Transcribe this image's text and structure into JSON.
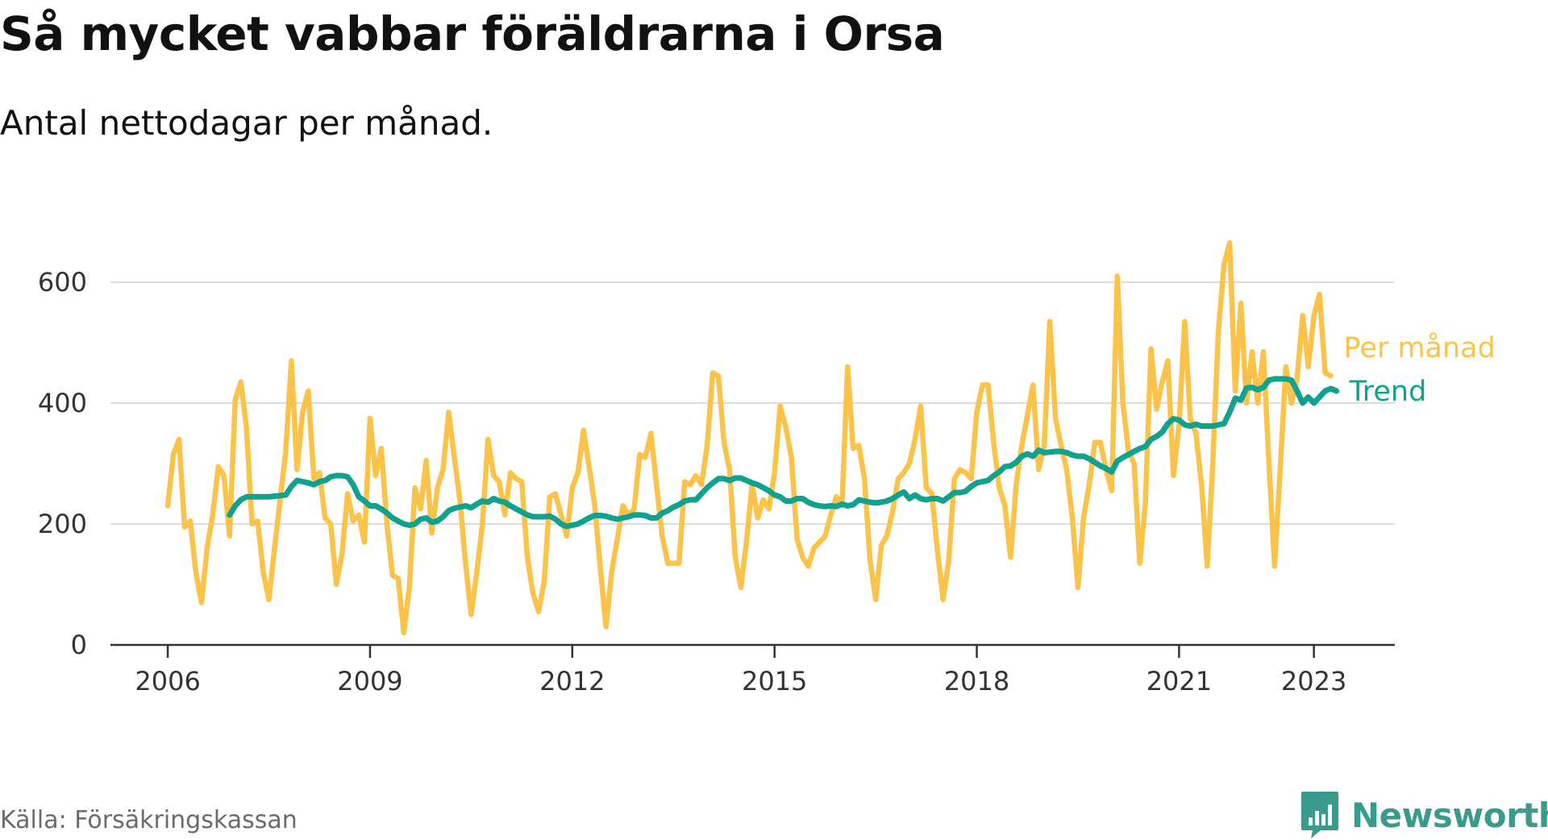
{
  "title": "Så mycket vabbar föräldrarna i Orsa",
  "subtitle": "Antal nettodagar per månad.",
  "source": "Källa: Försäkringskassan",
  "brand": {
    "name": "Newsworthy",
    "icon": "bar-chart-logo-icon",
    "color": "#3a9a8c"
  },
  "colors": {
    "monthly": "#fbc34a",
    "trend": "#12a08f",
    "grid": "#dcdcdc",
    "axis": "#333333"
  },
  "chart_data": {
    "type": "line",
    "title": "Så mycket vabbar föräldrarna i Orsa",
    "subtitle": "Antal nettodagar per månad.",
    "x_tick_labels": [
      "2006",
      "2009",
      "2012",
      "2015",
      "2018",
      "2021",
      "2023"
    ],
    "x_tick_positions": [
      2006,
      2009,
      2012,
      2015,
      2018,
      2021,
      2023
    ],
    "y_ticks": [
      0,
      200,
      400,
      600
    ],
    "xlim": [
      2005.15,
      2024.2
    ],
    "ylim": [
      0,
      680
    ],
    "grid": true,
    "series": [
      {
        "name": "Per månad",
        "color": "#fbc34a",
        "start": 2006.0,
        "step_months": 1,
        "values": [
          230,
          315,
          340,
          195,
          205,
          120,
          70,
          160,
          215,
          295,
          280,
          180,
          405,
          435,
          360,
          200,
          205,
          120,
          75,
          160,
          240,
          320,
          470,
          290,
          385,
          420,
          275,
          285,
          210,
          200,
          100,
          150,
          250,
          205,
          215,
          170,
          375,
          280,
          325,
          200,
          115,
          110,
          20,
          95,
          260,
          225,
          305,
          185,
          260,
          290,
          385,
          310,
          240,
          135,
          50,
          120,
          200,
          340,
          280,
          270,
          215,
          285,
          275,
          270,
          145,
          85,
          55,
          105,
          245,
          250,
          215,
          180,
          260,
          285,
          355,
          295,
          230,
          125,
          30,
          120,
          175,
          230,
          215,
          225,
          315,
          310,
          350,
          265,
          180,
          135,
          135,
          135,
          270,
          265,
          280,
          265,
          330,
          450,
          445,
          335,
          290,
          145,
          95,
          170,
          265,
          210,
          240,
          225,
          285,
          395,
          360,
          310,
          175,
          145,
          130,
          160,
          170,
          180,
          215,
          245,
          230,
          460,
          325,
          330,
          275,
          140,
          75,
          165,
          180,
          220,
          275,
          285,
          300,
          340,
          395,
          260,
          250,
          155,
          75,
          140,
          275,
          290,
          285,
          275,
          385,
          430,
          430,
          335,
          260,
          230,
          145,
          265,
          330,
          380,
          430,
          290,
          330,
          535,
          375,
          330,
          290,
          210,
          95,
          210,
          265,
          335,
          335,
          290,
          255,
          610,
          400,
          320,
          300,
          135,
          235,
          490,
          390,
          435,
          470,
          280,
          365,
          535,
          375,
          350,
          265,
          130,
          300,
          520,
          630,
          665,
          420,
          565,
          400,
          485,
          400,
          485,
          300,
          130,
          290,
          460,
          400,
          440,
          545,
          460,
          545,
          580,
          450,
          445
        ]
      },
      {
        "name": "Trend",
        "color": "#12a08f",
        "start": 2006.917,
        "step_months": 1,
        "values": [
          215,
          230,
          240,
          245,
          245,
          245,
          245,
          245,
          246,
          247,
          248,
          262,
          272,
          270,
          268,
          265,
          270,
          272,
          278,
          280,
          280,
          278,
          265,
          245,
          238,
          230,
          230,
          225,
          218,
          210,
          205,
          200,
          198,
          200,
          208,
          210,
          203,
          205,
          212,
          222,
          226,
          228,
          230,
          227,
          233,
          238,
          236,
          242,
          238,
          236,
          230,
          225,
          220,
          215,
          212,
          212,
          212,
          213,
          208,
          200,
          196,
          198,
          200,
          205,
          210,
          214,
          214,
          213,
          210,
          208,
          210,
          212,
          215,
          215,
          214,
          210,
          210,
          218,
          222,
          228,
          232,
          238,
          240,
          240,
          250,
          260,
          268,
          275,
          275,
          272,
          276,
          276,
          272,
          268,
          265,
          260,
          255,
          248,
          245,
          238,
          238,
          242,
          242,
          236,
          232,
          230,
          229,
          230,
          229,
          233,
          230,
          232,
          240,
          238,
          236,
          235,
          236,
          238,
          242,
          248,
          253,
          242,
          248,
          242,
          240,
          242,
          242,
          238,
          245,
          252,
          252,
          254,
          262,
          268,
          270,
          272,
          280,
          286,
          295,
          296,
          302,
          312,
          316,
          312,
          322,
          318,
          319,
          320,
          320,
          318,
          314,
          312,
          312,
          308,
          302,
          296,
          292,
          286,
          304,
          310,
          315,
          320,
          325,
          328,
          340,
          345,
          352,
          366,
          374,
          372,
          364,
          362,
          365,
          362,
          362,
          362,
          364,
          366,
          385,
          408,
          405,
          425,
          426,
          422,
          426,
          438,
          440,
          440,
          440,
          438,
          420,
          400,
          410,
          400,
          410,
          420,
          424,
          420
        ]
      }
    ]
  }
}
